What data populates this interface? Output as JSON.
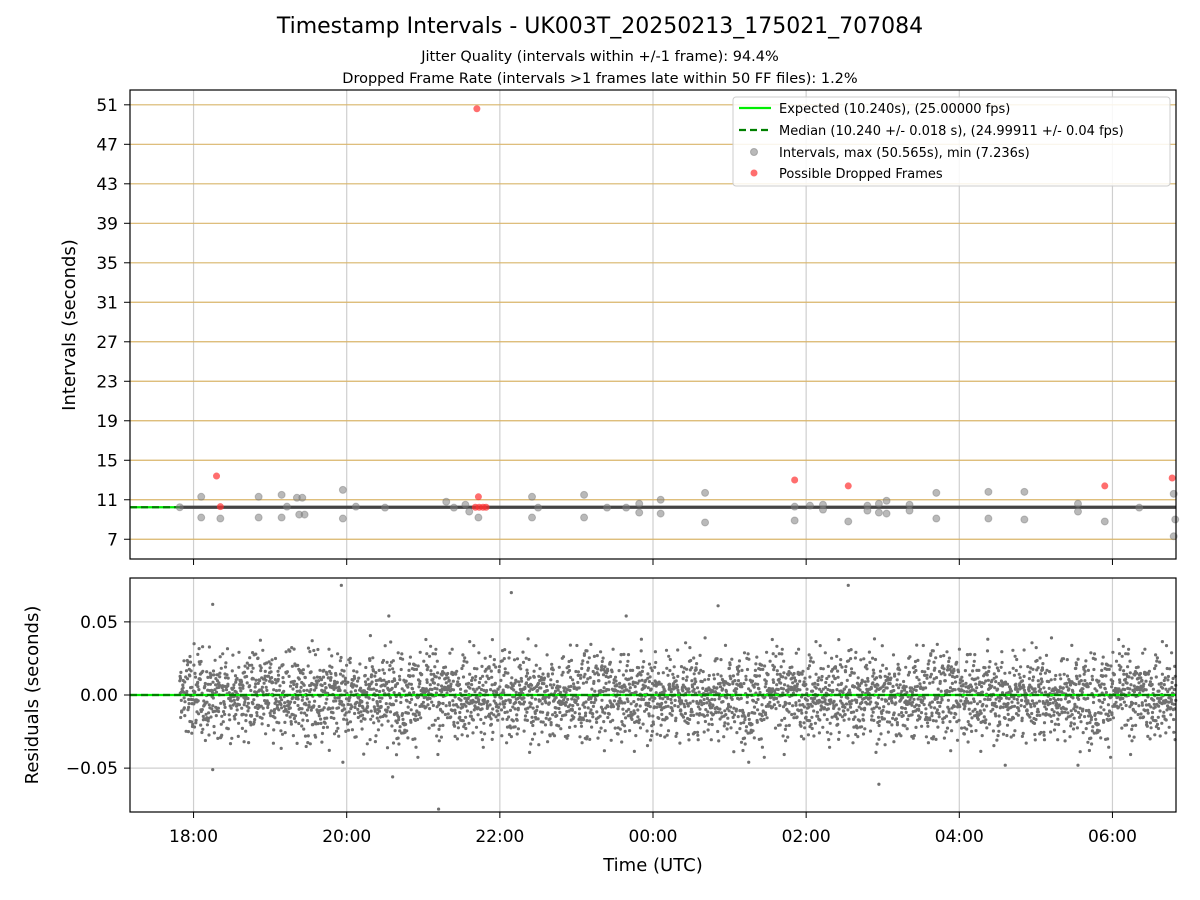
{
  "chart_data": [
    {
      "type": "scatter",
      "title": "Timestamp Intervals - UK003T_20250213_175021_707084",
      "subtitle": [
        "Jitter Quality (intervals within +/-1 frame): 94.4%",
        "Dropped Frame Rate (intervals >1 frames late within 50 FF files): 1.2%"
      ],
      "ylabel": "Intervals (seconds)",
      "ylim": [
        5.0,
        52.5
      ],
      "yticks": [
        "7",
        "11",
        "15",
        "19",
        "23",
        "27",
        "31",
        "35",
        "39",
        "43",
        "47",
        "51"
      ],
      "grid": "vertical grid lines; horizontal lines at y ticks",
      "legend": {
        "placement": "top-right",
        "entries": [
          {
            "label": "Expected (10.240s), (25.00000 fps)",
            "style": "solid line",
            "color": "#00ee00"
          },
          {
            "label": "Median (10.240 +/- 0.018 s), (24.99911 +/- 0.04 fps)",
            "style": "dashed line",
            "color": "#008000"
          },
          {
            "label": "Intervals, max (50.565s), min (7.236s)",
            "style": "marker",
            "color": "#808080"
          },
          {
            "label": "Possible Dropped Frames",
            "style": "marker",
            "color": "#ff3030"
          }
        ]
      },
      "expected_value": 10.24,
      "median_value": 10.24,
      "series": [
        {
          "name": "Intervals, max (50.565s), min (7.236s)",
          "color": "#808080",
          "points": [
            [
              17.82,
              10.24
            ],
            [
              18.1,
              11.3
            ],
            [
              18.1,
              9.2
            ],
            [
              18.35,
              9.1
            ],
            [
              18.85,
              11.3
            ],
            [
              18.85,
              9.2
            ],
            [
              19.15,
              11.5
            ],
            [
              19.15,
              9.2
            ],
            [
              19.22,
              10.3
            ],
            [
              19.35,
              11.2
            ],
            [
              19.42,
              11.2
            ],
            [
              19.38,
              9.5
            ],
            [
              19.45,
              9.5
            ],
            [
              19.95,
              12.0
            ],
            [
              19.95,
              9.1
            ],
            [
              20.12,
              10.3
            ],
            [
              20.5,
              10.2
            ],
            [
              21.3,
              10.8
            ],
            [
              21.4,
              10.2
            ],
            [
              21.55,
              10.5
            ],
            [
              21.6,
              9.8
            ],
            [
              21.72,
              9.2
            ],
            [
              22.42,
              11.3
            ],
            [
              22.42,
              9.2
            ],
            [
              22.5,
              10.2
            ],
            [
              23.1,
              11.5
            ],
            [
              23.1,
              9.2
            ],
            [
              23.4,
              10.2
            ],
            [
              23.65,
              10.2
            ],
            [
              23.82,
              10.6
            ],
            [
              23.82,
              9.7
            ],
            [
              24.1,
              11.0
            ],
            [
              24.1,
              9.6
            ],
            [
              24.68,
              11.7
            ],
            [
              24.68,
              8.7
            ],
            [
              25.85,
              10.3
            ],
            [
              25.85,
              8.9
            ],
            [
              26.05,
              10.4
            ],
            [
              26.22,
              10.5
            ],
            [
              26.22,
              10.0
            ],
            [
              26.55,
              8.8
            ],
            [
              26.8,
              10.4
            ],
            [
              26.8,
              9.9
            ],
            [
              26.95,
              10.6
            ],
            [
              26.95,
              9.7
            ],
            [
              27.05,
              10.9
            ],
            [
              27.05,
              9.6
            ],
            [
              27.35,
              10.5
            ],
            [
              27.35,
              9.9
            ],
            [
              27.7,
              11.7
            ],
            [
              27.7,
              9.1
            ],
            [
              28.38,
              11.8
            ],
            [
              28.38,
              9.1
            ],
            [
              28.85,
              11.8
            ],
            [
              28.85,
              9.0
            ],
            [
              29.55,
              10.6
            ],
            [
              29.55,
              9.8
            ],
            [
              29.9,
              8.8
            ],
            [
              30.35,
              10.2
            ],
            [
              30.8,
              11.6
            ],
            [
              30.8,
              7.3
            ],
            [
              30.82,
              9.0
            ]
          ]
        },
        {
          "name": "Possible Dropped Frames",
          "color": "#ff3030",
          "points": [
            [
              18.3,
              13.4
            ],
            [
              18.35,
              10.3
            ],
            [
              21.7,
              50.6
            ],
            [
              21.72,
              11.3
            ],
            [
              21.68,
              10.24
            ],
            [
              21.73,
              10.24
            ],
            [
              21.78,
              10.24
            ],
            [
              21.82,
              10.24
            ],
            [
              25.85,
              13.0
            ],
            [
              26.55,
              12.4
            ],
            [
              29.9,
              12.4
            ],
            [
              30.78,
              13.2
            ]
          ]
        }
      ]
    },
    {
      "type": "scatter",
      "title": "",
      "xlabel": "Time (UTC)",
      "ylabel": "Residuals (seconds)",
      "ylim": [
        -0.08,
        0.08
      ],
      "yticks": [
        "0.05",
        "0.00",
        "−0.05"
      ],
      "xticks": [
        "18:00",
        "20:00",
        "22:00",
        "00:00",
        "02:00",
        "04:00",
        "06:00"
      ],
      "xlim_hours": [
        17.17,
        30.83
      ],
      "grid": "on",
      "zero_line_color": "#00ee00",
      "median_line_color": "#008000",
      "point_color": "#707070",
      "series": [
        {
          "name": "",
          "sample_count_approx": 4300,
          "x_range_hours": [
            17.82,
            30.83
          ],
          "typical_spread_seconds": 0.02,
          "outliers": [
            [
              19.93,
              0.075
            ],
            [
              26.55,
              0.075
            ],
            [
              22.15,
              0.07
            ],
            [
              18.25,
              0.062
            ],
            [
              24.85,
              0.061
            ],
            [
              20.55,
              0.054
            ],
            [
              23.65,
              0.054
            ],
            [
              21.2,
              -0.078
            ],
            [
              18.25,
              -0.051
            ],
            [
              20.6,
              -0.056
            ],
            [
              26.95,
              -0.061
            ],
            [
              19.95,
              -0.046
            ],
            [
              25.25,
              -0.046
            ],
            [
              28.6,
              -0.048
            ],
            [
              29.55,
              -0.048
            ]
          ]
        }
      ]
    }
  ]
}
